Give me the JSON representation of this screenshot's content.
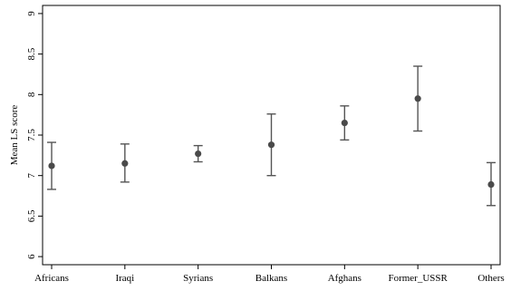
{
  "chart_data": {
    "type": "scatter",
    "subtype": "errorbar",
    "title": "",
    "xlabel": "",
    "ylabel": "Mean LS score",
    "ylim": [
      5.9,
      9.1
    ],
    "yticks": [
      6,
      6.5,
      7,
      7.5,
      8,
      8.5,
      9
    ],
    "ytick_labels": [
      "6",
      "6.5",
      "7",
      "7.5",
      "8",
      "8.5",
      "9"
    ],
    "categories": [
      "Africans",
      "Iraqi",
      "Syrians",
      "Balkans",
      "Afghans",
      "Former_USSR",
      "Others"
    ],
    "means": [
      7.12,
      7.15,
      7.27,
      7.38,
      7.65,
      7.95,
      6.89
    ],
    "lower": [
      6.83,
      6.92,
      7.17,
      7.0,
      7.44,
      7.55,
      6.63
    ],
    "upper": [
      7.41,
      7.39,
      7.37,
      7.76,
      7.86,
      8.35,
      7.16
    ],
    "grid": false,
    "legend": "none",
    "colors": {
      "marker": "#4a4a4a",
      "errorbar": "#555555",
      "axis": "#000000"
    }
  }
}
